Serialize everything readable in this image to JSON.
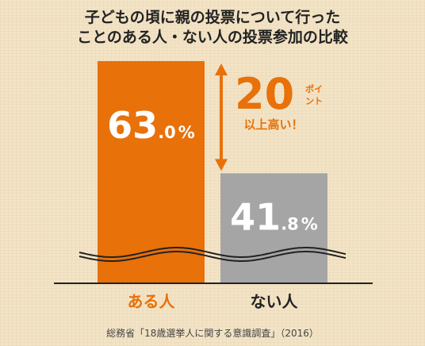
{
  "chart_data": {
    "type": "bar",
    "title_lines": [
      "子どもの頃に親の投票について行った",
      "ことのある人・ない人の投票参加の比較"
    ],
    "categories": [
      "ある人",
      "ない人"
    ],
    "values": [
      63.0,
      41.8
    ],
    "value_labels": [
      {
        "main": "63",
        "small": ".0",
        "unit": "%"
      },
      {
        "main": "41",
        "small": ".8",
        "unit": "%"
      }
    ],
    "colors": [
      "#e8710a",
      "#a5a5a5"
    ],
    "category_label_colors": [
      "#e8710a",
      "#222222"
    ],
    "axis_broken": true,
    "difference": {
      "value": "20",
      "unit": "ポイント",
      "note": "以上高い！",
      "color": "#e8710a"
    },
    "source": "総務省「18歳選挙人に関する意識調査」（2016）"
  }
}
